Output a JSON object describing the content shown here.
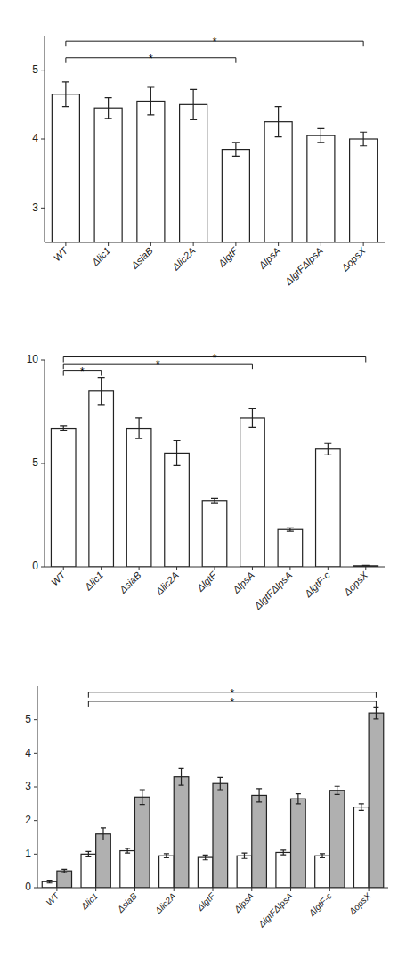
{
  "chart_data": [
    {
      "type": "bar",
      "categories": [
        "WT",
        "Δlic1",
        "ΔsiaB",
        "Δlic2A",
        "ΔlgtF",
        "ΔlpsA",
        "ΔlgtFΔlpsA",
        "ΔopsX"
      ],
      "values": [
        4.65,
        4.45,
        4.55,
        4.5,
        3.85,
        4.25,
        4.05,
        4.0
      ],
      "errors": [
        0.18,
        0.15,
        0.2,
        0.22,
        0.1,
        0.22,
        0.1,
        0.1
      ],
      "color": "#ffffff",
      "ylim": [
        2.5,
        5.5
      ],
      "yticks": [
        3,
        4,
        5
      ],
      "annotations": [
        {
          "text": "*",
          "from": "WT",
          "to": "ΔlgtF",
          "y": 5.18
        },
        {
          "text": "*",
          "from": "WT",
          "to": "ΔopsX",
          "y": 5.42
        }
      ]
    },
    {
      "type": "bar",
      "categories": [
        "WT",
        "Δlic1",
        "ΔsiaB",
        "Δlic2A",
        "ΔlgtF",
        "ΔlpsA",
        "ΔlgtFΔlpsA",
        "ΔlgtF-c",
        "ΔopsX"
      ],
      "values": [
        6.7,
        8.5,
        6.7,
        5.5,
        3.2,
        7.2,
        1.8,
        5.7,
        0.05
      ],
      "errors": [
        0.12,
        0.65,
        0.5,
        0.6,
        0.1,
        0.45,
        0.08,
        0.28,
        0.02
      ],
      "color": "#ffffff",
      "ylim": [
        0,
        10
      ],
      "yticks": [
        0,
        5,
        10
      ],
      "annotations": [
        {
          "text": "*",
          "from": "WT",
          "to": "Δlic1",
          "y": 9.5
        },
        {
          "text": "*",
          "from": "WT",
          "to": "ΔlpsA",
          "y": 9.82
        },
        {
          "text": "*",
          "from": "WT",
          "to": "ΔopsX",
          "y": 10.15
        }
      ]
    },
    {
      "type": "bar",
      "categories": [
        "WT",
        "Δlic1",
        "ΔsiaB",
        "Δlic2A",
        "ΔlgtF",
        "ΔlpsA",
        "ΔlgtFΔlpsA",
        "ΔlgtF-c",
        "ΔopsX"
      ],
      "series": [
        {
          "color": "#ffffff",
          "values": [
            0.18,
            1.0,
            1.1,
            0.95,
            0.9,
            0.95,
            1.05,
            0.95,
            2.4
          ],
          "errors": [
            0.04,
            0.08,
            0.07,
            0.06,
            0.07,
            0.08,
            0.07,
            0.06,
            0.1
          ]
        },
        {
          "color": "#b0b0b0",
          "values": [
            0.5,
            1.6,
            2.7,
            3.3,
            3.1,
            2.75,
            2.65,
            2.9,
            5.2
          ],
          "errors": [
            0.05,
            0.18,
            0.22,
            0.25,
            0.18,
            0.2,
            0.15,
            0.12,
            0.18
          ]
        }
      ],
      "ylim": [
        0,
        6
      ],
      "yticks": [
        0,
        1,
        2,
        3,
        4,
        5
      ],
      "annotations": [
        {
          "text": "*",
          "from": "Δlic1",
          "to": "ΔopsX",
          "y": 5.55
        },
        {
          "text": "*",
          "from": "Δlic1",
          "to": "ΔopsX",
          "y": 5.82
        }
      ]
    }
  ]
}
